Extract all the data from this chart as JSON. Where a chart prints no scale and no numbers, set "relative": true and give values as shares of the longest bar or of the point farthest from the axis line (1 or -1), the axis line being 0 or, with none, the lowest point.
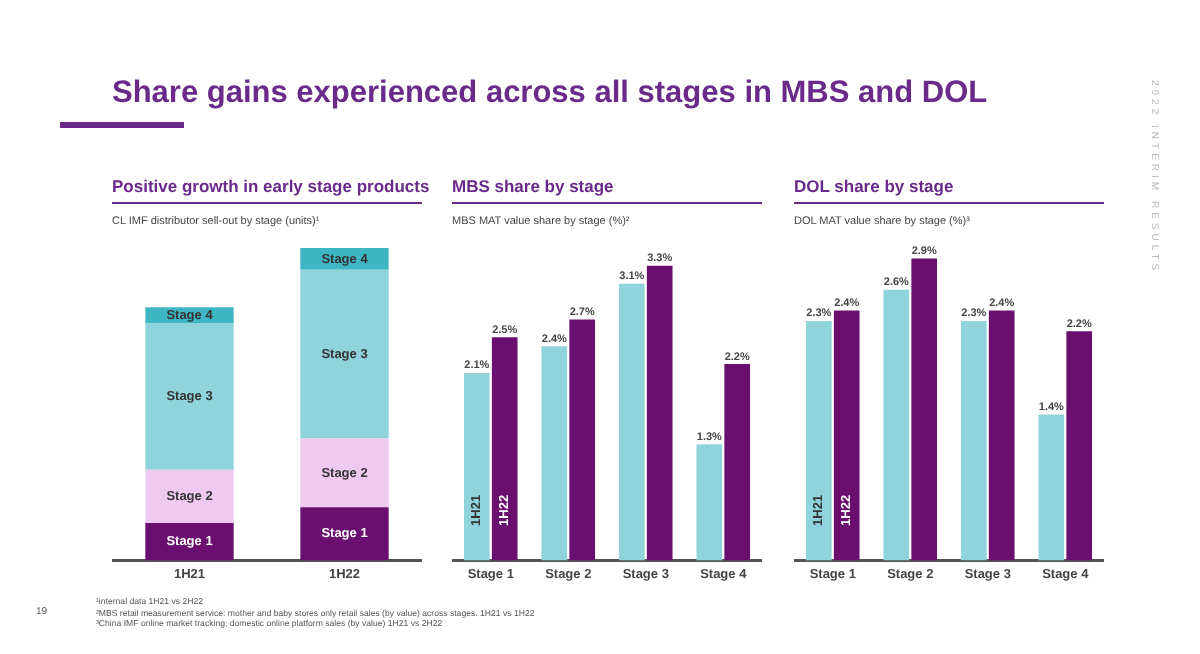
{
  "chart_data": [
    {
      "type": "bar",
      "title": "Positive growth in early stage products",
      "subtitle": "CL IMF distributor sell-out by stage (units)¹",
      "categories": [
        "1H21",
        "1H22"
      ],
      "stacked": true,
      "relative": true,
      "series": [
        {
          "name": "Stage 1",
          "color": "#6a0f6f",
          "values": [
            0.12,
            0.17
          ]
        },
        {
          "name": "Stage 2",
          "color": "#efc9f0",
          "values": [
            0.17,
            0.22
          ]
        },
        {
          "name": "Stage 3",
          "color": "#8fd3dc",
          "values": [
            0.47,
            0.54
          ]
        },
        {
          "name": "Stage 4",
          "color": "#3fb6c4",
          "values": [
            0.05,
            0.07
          ]
        }
      ],
      "annotations": [
        "Share gains experienced across all stages in MBS and DOL",
        "2022 INTERIM RESULTS",
        "19",
        "¹internal data 1H21 vs 2H22",
        "²MBS retail measurement service: mother and baby stores only retail sales (by value) across stages. 1H21 vs 1H22",
        "³China IMF online market tracking; domestic online platform sales (by value) 1H21 vs 2H22"
      ]
    },
    {
      "type": "bar",
      "title": "MBS share by stage",
      "subtitle": "MBS MAT value share by stage (%)²",
      "categories": [
        "Stage 1",
        "Stage 2",
        "Stage 3",
        "Stage 4"
      ],
      "series": [
        {
          "name": "1H21",
          "color": "#8fd3dc",
          "values": [
            2.1,
            2.4,
            3.1,
            1.3
          ],
          "value_labels": [
            "2.1%",
            "2.4%",
            "3.1%",
            "1.3%"
          ]
        },
        {
          "name": "1H22",
          "color": "#6a0f6f",
          "values": [
            2.5,
            2.7,
            3.3,
            2.2
          ],
          "value_labels": [
            "2.5%",
            "2.7%",
            "3.3%",
            "2.2%"
          ]
        }
      ]
    },
    {
      "type": "bar",
      "title": "DOL share by stage",
      "subtitle": "DOL MAT value share by stage (%)³",
      "categories": [
        "Stage 1",
        "Stage 2",
        "Stage 3",
        "Stage 4"
      ],
      "series": [
        {
          "name": "1H21",
          "color": "#8fd3dc",
          "values": [
            2.3,
            2.6,
            2.3,
            1.4
          ],
          "value_labels": [
            "2.3%",
            "2.6%",
            "2.3%",
            "1.4%"
          ]
        },
        {
          "name": "1H22",
          "color": "#6a0f6f",
          "values": [
            2.4,
            2.9,
            2.4,
            2.2
          ],
          "value_labels": [
            "2.4%",
            "2.9%",
            "2.4%",
            "2.2%"
          ]
        }
      ]
    }
  ]
}
